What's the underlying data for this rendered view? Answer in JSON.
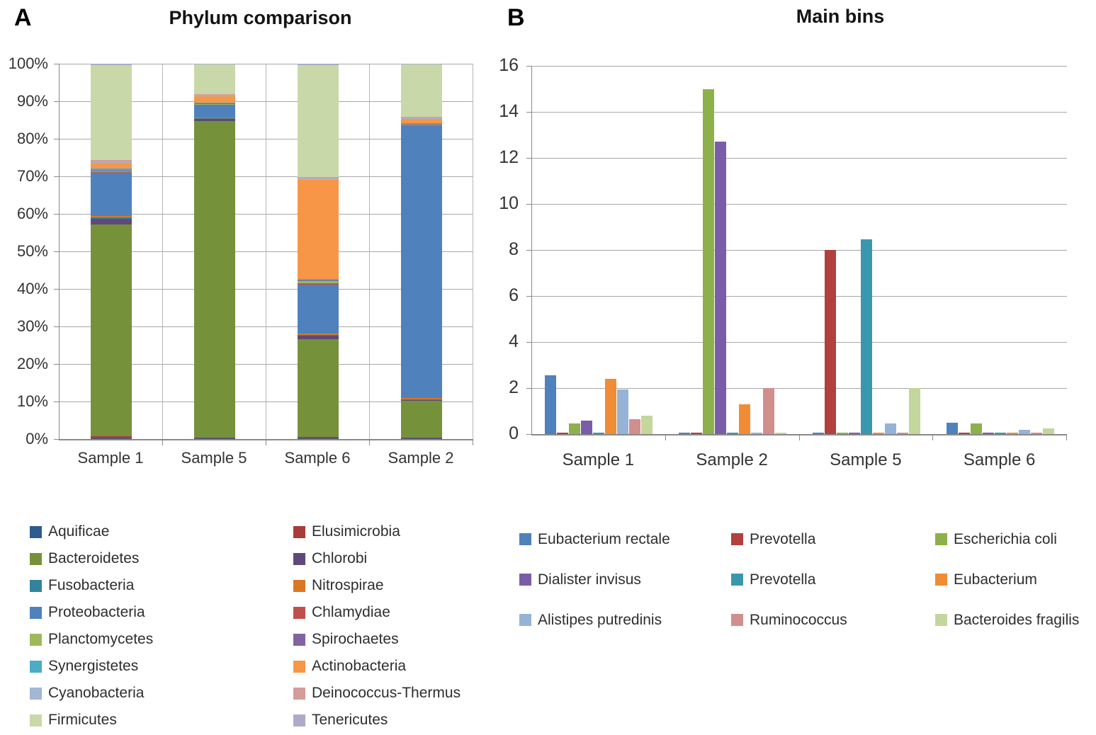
{
  "figure": {
    "panel_a": {
      "label": "A",
      "title": "Phylum comparison"
    },
    "panel_b": {
      "label": "B",
      "title": "Main bins"
    }
  },
  "chart_data": [
    {
      "type": "bar",
      "subtype": "stacked-100-percent",
      "panel": "A",
      "title": "Phylum comparison",
      "categories": [
        "Sample 1",
        "Sample 5",
        "Sample 6",
        "Sample 2"
      ],
      "ylim": [
        0,
        100
      ],
      "y_ticks": [
        "0%",
        "10%",
        "20%",
        "30%",
        "40%",
        "50%",
        "60%",
        "70%",
        "80%",
        "90%",
        "100%"
      ],
      "grid": true,
      "legend_position": "bottom",
      "legend_columns": 2,
      "series": [
        {
          "name": "Aquificae",
          "color": "#2d5b8e",
          "values": [
            0.2,
            0.1,
            0.1,
            0.1
          ]
        },
        {
          "name": "Elusimicrobia",
          "color": "#a83c38",
          "values": [
            0.5,
            0.2,
            0.5,
            0.2
          ]
        },
        {
          "name": "Bacteroidetes",
          "color": "#75923b",
          "values": [
            56.5,
            84.5,
            26.0,
            9.8
          ]
        },
        {
          "name": "Chlorobi",
          "color": "#5f497a",
          "values": [
            1.5,
            0.5,
            0.9,
            0.3
          ]
        },
        {
          "name": "Fusobacteria",
          "color": "#31849b",
          "values": [
            0.3,
            0.1,
            0.2,
            0.2
          ]
        },
        {
          "name": "Nitrospirae",
          "color": "#db7723",
          "values": [
            0.5,
            0.2,
            0.5,
            0.3
          ]
        },
        {
          "name": "Proteobacteria",
          "color": "#4f81bd",
          "values": [
            11.5,
            3.4,
            13.0,
            72.5
          ]
        },
        {
          "name": "Chlamydiae",
          "color": "#c0504d",
          "values": [
            0.2,
            0.2,
            0.3,
            0.2
          ]
        },
        {
          "name": "Planctomycetes",
          "color": "#9bbb59",
          "values": [
            0.2,
            0.1,
            0.6,
            0.2
          ]
        },
        {
          "name": "Spirochaetes",
          "color": "#8064a2",
          "values": [
            0.2,
            0.1,
            0.2,
            0.1
          ]
        },
        {
          "name": "Synergistetes",
          "color": "#4bacc6",
          "values": [
            0.5,
            0.2,
            0.3,
            0.2
          ]
        },
        {
          "name": "Actinobacteria",
          "color": "#f79646",
          "values": [
            1.4,
            1.9,
            26.5,
            1.2
          ]
        },
        {
          "name": "Cyanobacteria",
          "color": "#a3b6d4",
          "values": [
            0.2,
            0.1,
            0.3,
            0.2
          ]
        },
        {
          "name": "Deinococcus-Thermus",
          "color": "#d49c9a",
          "values": [
            0.6,
            0.3,
            0.5,
            0.4
          ]
        },
        {
          "name": "Firmicutes",
          "color": "#c9d8a9",
          "values": [
            25.4,
            8.0,
            29.8,
            14.0
          ]
        },
        {
          "name": "Tenericutes",
          "color": "#adabc9",
          "values": [
            0.3,
            0.1,
            0.3,
            0.1
          ]
        }
      ]
    },
    {
      "type": "bar",
      "subtype": "grouped",
      "panel": "B",
      "title": "Main bins",
      "categories": [
        "Sample 1",
        "Sample 2",
        "Sample 5",
        "Sample 6"
      ],
      "ylim": [
        0,
        16
      ],
      "y_ticks": [
        0,
        2,
        4,
        6,
        8,
        10,
        12,
        14,
        16
      ],
      "grid": true,
      "legend_position": "bottom",
      "legend_columns": 3,
      "series": [
        {
          "name": "Eubacterium rectale",
          "color": "#4f81bd",
          "values": [
            2.55,
            0.07,
            0.07,
            0.5
          ]
        },
        {
          "name": "Prevotella",
          "color": "#b0413e",
          "values": [
            0.07,
            0.07,
            8.0,
            0.07
          ]
        },
        {
          "name": "Escherichia coli",
          "color": "#8eb04a",
          "values": [
            0.45,
            15.0,
            0.05,
            0.45
          ]
        },
        {
          "name": "Dialister invisus",
          "color": "#7a5da8",
          "values": [
            0.6,
            12.7,
            0.07,
            0.05
          ]
        },
        {
          "name": "Prevotella",
          "color": "#3998ad",
          "values": [
            0.05,
            0.07,
            8.45,
            0.05
          ]
        },
        {
          "name": "Eubacterium",
          "color": "#f08c35",
          "values": [
            2.4,
            1.3,
            0.05,
            0.05
          ]
        },
        {
          "name": "Alistipes putredinis",
          "color": "#95b3d7",
          "values": [
            1.95,
            0.05,
            0.45,
            0.2
          ]
        },
        {
          "name": "Ruminococcus",
          "color": "#d08f8d",
          "values": [
            0.65,
            2.0,
            0.05,
            0.05
          ]
        },
        {
          "name": "Bacteroides fragilis",
          "color": "#c3d69b",
          "values": [
            0.8,
            0.05,
            2.0,
            0.25
          ]
        }
      ]
    }
  ]
}
